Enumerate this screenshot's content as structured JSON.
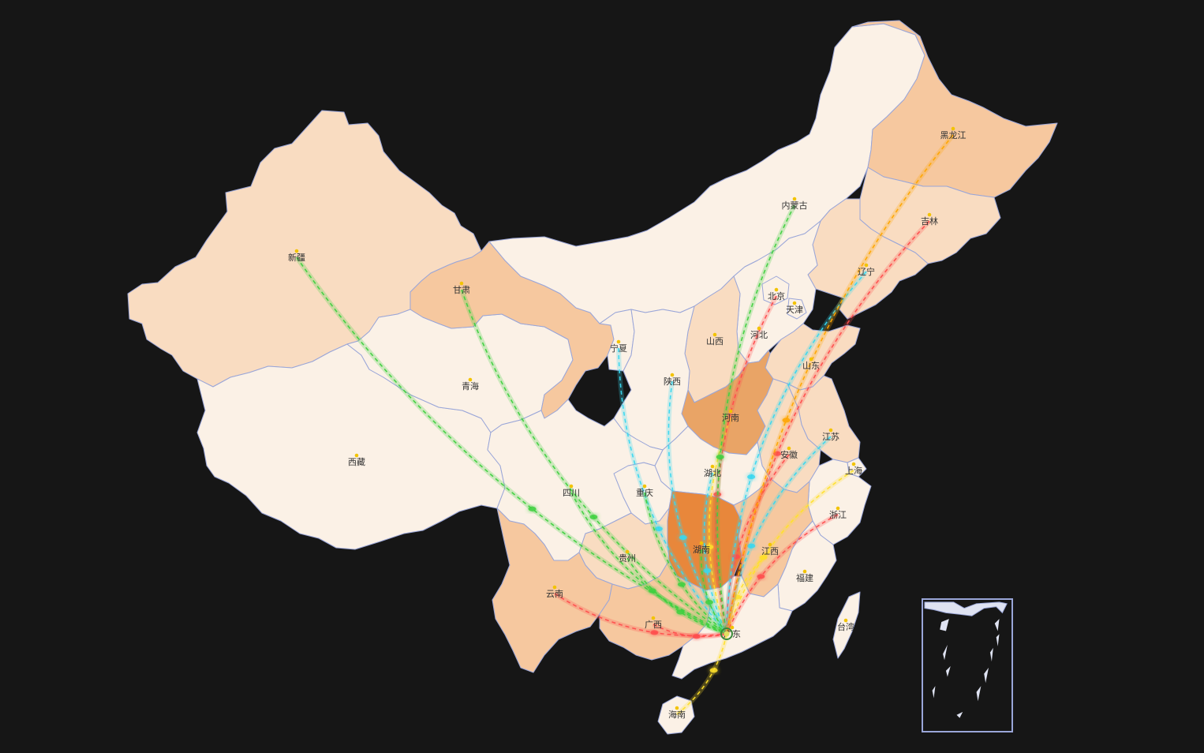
{
  "map": {
    "background_color": "#161616",
    "border_color": "#9aa6d8",
    "hub_province": "广东",
    "hub_color": "#e0e060",
    "provinces": [
      {
        "id": "xinjiang",
        "name": "新疆",
        "level": 1
      },
      {
        "id": "xizang",
        "name": "西藏",
        "level": 0
      },
      {
        "id": "qinghai",
        "name": "青海",
        "level": 0
      },
      {
        "id": "gansu",
        "name": "甘肃",
        "level": 2
      },
      {
        "id": "neimenggu",
        "name": "内蒙古",
        "level": 0
      },
      {
        "id": "heilongjiang",
        "name": "黑龙江",
        "level": 2
      },
      {
        "id": "jilin",
        "name": "吉林",
        "level": 1
      },
      {
        "id": "liaoning",
        "name": "辽宁",
        "level": 1
      },
      {
        "id": "beijing",
        "name": "北京",
        "level": 0
      },
      {
        "id": "tianjin",
        "name": "天津",
        "level": 0
      },
      {
        "id": "hebei",
        "name": "河北",
        "level": 0
      },
      {
        "id": "shanxi",
        "name": "山西",
        "level": 1
      },
      {
        "id": "shandong",
        "name": "山东",
        "level": 1
      },
      {
        "id": "ningxia",
        "name": "宁夏",
        "level": 0
      },
      {
        "id": "shaanxi",
        "name": "陕西",
        "level": 0
      },
      {
        "id": "henan",
        "name": "河南",
        "level": 3
      },
      {
        "id": "jiangsu",
        "name": "江苏",
        "level": 1
      },
      {
        "id": "anhui",
        "name": "安徽",
        "level": 1
      },
      {
        "id": "shanghai",
        "name": "上海",
        "level": 0
      },
      {
        "id": "hubei",
        "name": "湖北",
        "level": 0
      },
      {
        "id": "sichuan",
        "name": "四川",
        "level": 0
      },
      {
        "id": "chongqing",
        "name": "重庆",
        "level": 0
      },
      {
        "id": "zhejiang",
        "name": "浙江",
        "level": 0
      },
      {
        "id": "hunan",
        "name": "湖南",
        "level": 4
      },
      {
        "id": "jiangxi",
        "name": "江西",
        "level": 2
      },
      {
        "id": "guizhou",
        "name": "贵州",
        "level": 1
      },
      {
        "id": "fujian",
        "name": "福建",
        "level": 0
      },
      {
        "id": "yunnan",
        "name": "云南",
        "level": 2
      },
      {
        "id": "guangxi",
        "name": "广西",
        "level": 2
      },
      {
        "id": "guangdong",
        "name": "广东",
        "level": 0
      },
      {
        "id": "taiwan",
        "name": "台湾",
        "level": 0
      },
      {
        "id": "hainan",
        "name": "海南",
        "level": 0
      }
    ],
    "level_colors": [
      "#fbf1e6",
      "#f9dcc1",
      "#f6c89f",
      "#e9a466",
      "#e8873b"
    ],
    "flows": [
      {
        "from": "新疆",
        "to": "广东",
        "color": "#3fd13f"
      },
      {
        "from": "甘肃",
        "to": "广东",
        "color": "#3fd13f"
      },
      {
        "from": "宁夏",
        "to": "广东",
        "color": "#38d8f0"
      },
      {
        "from": "陕西",
        "to": "广东",
        "color": "#38d8f0"
      },
      {
        "from": "四川",
        "to": "广东",
        "color": "#3fd13f"
      },
      {
        "from": "重庆",
        "to": "广东",
        "color": "#3fd13f"
      },
      {
        "from": "贵州",
        "to": "广东",
        "color": "#3fd13f"
      },
      {
        "from": "云南",
        "to": "广东",
        "color": "#ff4d4d"
      },
      {
        "from": "广西",
        "to": "广东",
        "color": "#ff4d4d"
      },
      {
        "from": "河南",
        "to": "广东",
        "color": "#ffe02a"
      },
      {
        "from": "湖北",
        "to": "广东",
        "color": "#38d8f0"
      },
      {
        "from": "湖南",
        "to": "广东",
        "color": "#3fd13f"
      },
      {
        "from": "江西",
        "to": "广东",
        "color": "#ffe02a"
      },
      {
        "from": "安徽",
        "to": "广东",
        "color": "#ff4d4d"
      },
      {
        "from": "北京",
        "to": "广东",
        "color": "#ff4d4d"
      },
      {
        "from": "江苏",
        "to": "广东",
        "color": "#38d8f0"
      },
      {
        "from": "上海",
        "to": "广东",
        "color": "#ffe02a"
      },
      {
        "from": "浙江",
        "to": "广东",
        "color": "#ff4d4d"
      },
      {
        "from": "内蒙古",
        "to": "广东",
        "color": "#3fd13f"
      },
      {
        "from": "辽宁",
        "to": "广东",
        "color": "#38d8f0"
      },
      {
        "from": "吉林",
        "to": "广东",
        "color": "#ff4d4d"
      },
      {
        "from": "黑龙江",
        "to": "广东",
        "color": "#ffa500"
      },
      {
        "from": "海南",
        "to": "广东",
        "color": "#ffe02a"
      }
    ]
  }
}
